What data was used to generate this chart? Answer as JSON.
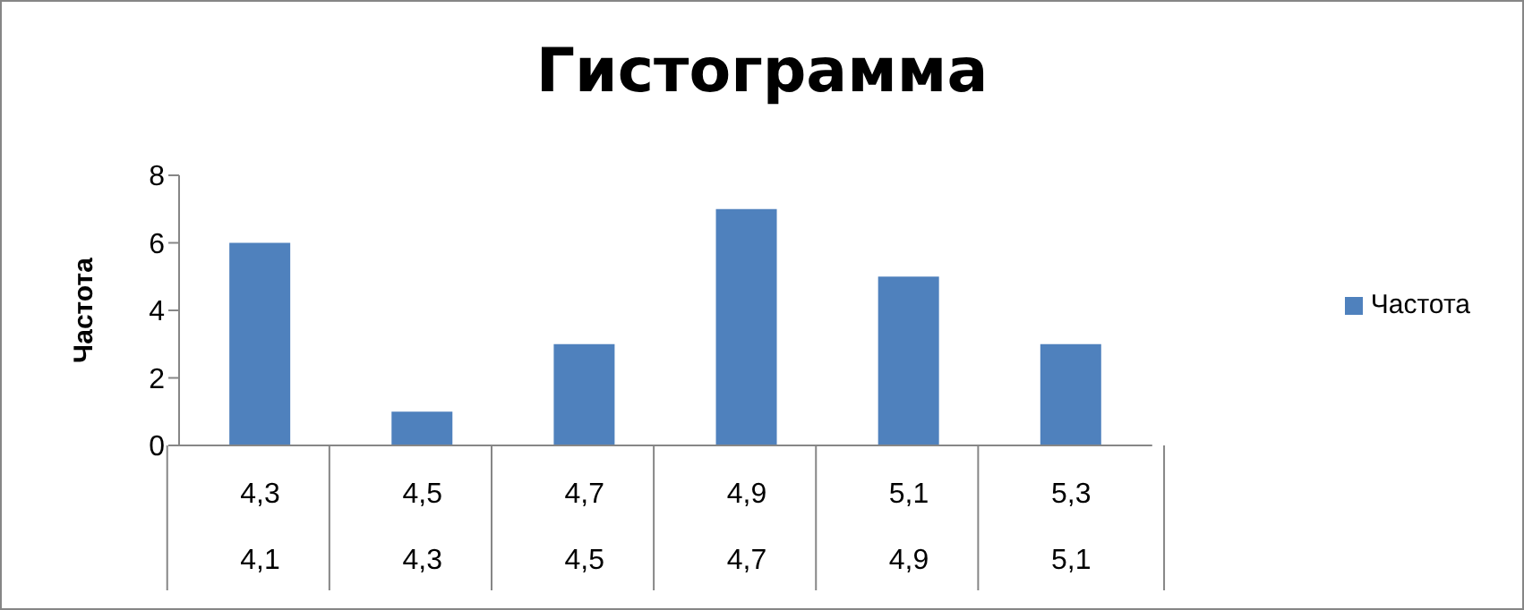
{
  "chart_data": {
    "type": "bar",
    "title": "Гистограмма",
    "ylabel": "Частота",
    "categories": [
      "4,3\n4,1",
      "4,5\n4,3",
      "4,7\n4,5",
      "4,9\n4,7",
      "5,1\n4,9",
      "5,3\n5,1"
    ],
    "series": [
      {
        "name": "Частота",
        "color": "#4f81bd",
        "values": [
          6,
          1,
          3,
          7,
          5,
          3
        ]
      }
    ],
    "ylim": [
      0,
      8
    ],
    "yticks": [
      0,
      2,
      4,
      6,
      8
    ],
    "grid": false,
    "legend": "right"
  }
}
